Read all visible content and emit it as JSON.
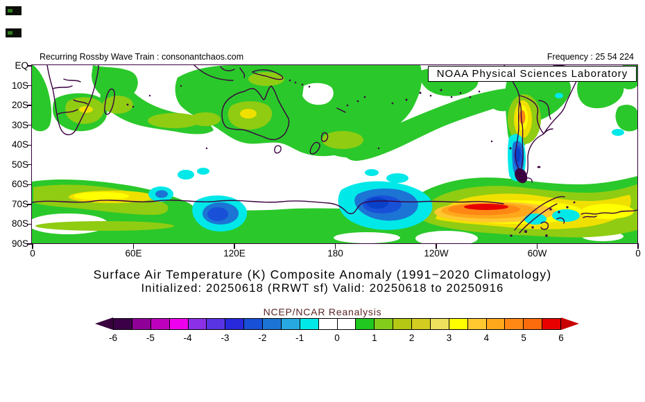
{
  "header": {
    "left_title": "Recurring Rossby Wave Train : consonantchaos.com",
    "frequency": "Frequency : 25 54 224",
    "noaa_label": "NOAA Physical Sciences Laboratory"
  },
  "titles": {
    "main": "Surface Air Temperature (K) Composite Anomaly (1991−2020 Climatology)",
    "init_valid": "Initialized: 20250618 (RRWT sf) Valid: 20250618 to 20250916",
    "reanalysis": "NCEP/NCAR Reanalysis"
  },
  "axes": {
    "y_labels": [
      "EQ",
      "10S",
      "20S",
      "30S",
      "40S",
      "50S",
      "60S",
      "70S",
      "80S",
      "90S"
    ],
    "x_labels": [
      "0",
      "60E",
      "120E",
      "180",
      "120W",
      "60W",
      "0"
    ]
  },
  "colorbar": {
    "tick_labels": [
      "-6",
      "-5",
      "-4",
      "-3",
      "-2",
      "-1",
      "0",
      "1",
      "2",
      "3",
      "4",
      "5",
      "6"
    ],
    "cell_colors": [
      "#3C0048",
      "#8E0098",
      "#BE00BE",
      "#EE00EE",
      "#8C30E8",
      "#5834E4",
      "#2828DC",
      "#1850D8",
      "#1C74D4",
      "#28A8E0",
      "#00E8E8",
      "#FFFFFF",
      "#FFFFFF",
      "#20C820",
      "#84CC1C",
      "#B4C814",
      "#D4CC20",
      "#ECE05C",
      "#FFFF00",
      "#FFC830",
      "#FFA81C",
      "#FF8814",
      "#FC6C0C",
      "#E80000"
    ],
    "left_arrow_color": "#38003C",
    "right_arrow_color": "#C80000"
  },
  "colors": {
    "coastline": "#3A0040",
    "positive_weak": "#2AC82A",
    "positive_moderate": "#8FCC12",
    "negative_weak": "#00E8E8",
    "frame": "#3A0040"
  },
  "chart_data": {
    "type": "heatmap",
    "subtype": "filled_contour_anomaly_map",
    "title": "Surface Air Temperature (K) Composite Anomaly (1991−2020 Climatology)",
    "subtitle": "Initialized: 20250618 (RRWT sf) Valid: 20250618 to 20250916",
    "source_label": "NCEP/NCAR Reanalysis",
    "variable": "Surface Air Temperature anomaly",
    "units": "K",
    "lat_range": [
      "EQ",
      "90S"
    ],
    "lon_range": [
      "0",
      "360 (0 via 60E,120E,180,120W,60W)"
    ],
    "contour_interval": 0.5,
    "scale_range": [
      -6,
      6
    ],
    "legend_position": "bottom",
    "grid": false,
    "features": [
      {
        "region": "southern Africa interior",
        "lon": "25E",
        "lat": "25S",
        "anomaly_K": 1.5
      },
      {
        "region": "Madagascar / SW Indian Ocean",
        "lon": "48E",
        "lat": "22S",
        "anomaly_K": 1.5
      },
      {
        "region": "central Australia",
        "lon": "130E",
        "lat": "25S",
        "anomaly_K": 1.5
      },
      {
        "region": "New Zealand / Tasman Sea",
        "lon": "172E",
        "lat": "40S",
        "anomaly_K": 1.5
      },
      {
        "region": "Maritime Continent and tropical west Pacific",
        "lon": "100E-170E",
        "lat": "0-15S",
        "anomaly_K": 1
      },
      {
        "region": "Brazil / tropical South America",
        "lon": "50W",
        "lat": "10S",
        "anomaly_K": 1
      },
      {
        "region": "northern Argentina / central Andes",
        "lon": "68W",
        "lat": "27S",
        "anomaly_K": 4.5
      },
      {
        "region": "Patagonia cold streak",
        "lon": "70W",
        "lat": "45S",
        "anomaly_K": -4.5
      },
      {
        "region": "Southern Ocean south of Australia",
        "lon": "115E",
        "lat": "75S",
        "anomaly_K": -3
      },
      {
        "region": "Ross Sea / date-line Southern Ocean",
        "lon": "175W",
        "lat": "70S",
        "anomaly_K": -3
      },
      {
        "region": "West Antarctica / Amundsen-Bellingshausen Seas warm core",
        "lon": "110W-70W",
        "lat": "75S-80S",
        "anomaly_K": 6
      },
      {
        "region": "East Antarctic coastal band",
        "lon": "0-40E",
        "lat": "68S",
        "anomaly_K": 3
      },
      {
        "region": "Antarctic coast near Greenwich (right edge)",
        "lon": "20W-0",
        "lat": "72S",
        "anomaly_K": 3
      }
    ]
  }
}
